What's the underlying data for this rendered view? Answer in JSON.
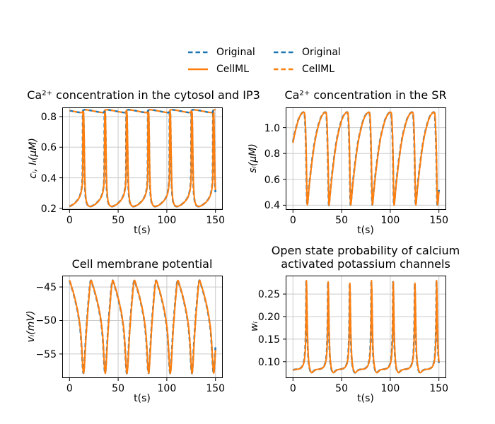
{
  "figure": {
    "background": "#ffffff"
  },
  "legends": [
    {
      "location": "top-center-left",
      "entries": [
        {
          "label": "Original",
          "color": "#1f77b4",
          "linestyle": "dashed"
        },
        {
          "label": "CellML",
          "color": "#ff7f0e",
          "linestyle": "solid"
        }
      ]
    },
    {
      "location": "top-center-right",
      "entries": [
        {
          "label": "Original",
          "color": "#1f77b4",
          "linestyle": "dashed"
        },
        {
          "label": "CellML",
          "color": "#ff7f0e",
          "linestyle": "dashed"
        }
      ]
    }
  ],
  "chart_data": [
    {
      "id": "cytosol",
      "type": "line",
      "title": "Ca²⁺ concentration in the cytosol and IP3",
      "xlabel": "t(s)",
      "ylabel": "cᵢ, Iᵢ(μM)",
      "xlim": [
        -7.5,
        157.5
      ],
      "ylim": [
        0.19,
        0.86
      ],
      "xticks": [
        0,
        50,
        100,
        150
      ],
      "xtick_labels": [
        "0",
        "50",
        "100",
        "150"
      ],
      "yticks": [
        0.2,
        0.4,
        0.6,
        0.8
      ],
      "ytick_labels": [
        "0.2",
        "0.4",
        "0.6",
        "0.8"
      ],
      "grid": true,
      "t_range": [
        0,
        150
      ],
      "period": 22.3,
      "first_spike": 13.8,
      "series": [
        {
          "name": "Original",
          "variable": "ci",
          "color": "#1f77b4",
          "dash": [
            6,
            4
          ],
          "width": 2.6,
          "t_offset": 0.15,
          "waveform": "ci"
        },
        {
          "name": "CellML",
          "variable": "ci",
          "color": "#ff7f0e",
          "dash": null,
          "width": 2.1,
          "t_offset": 0,
          "waveform": "ci"
        },
        {
          "name": "Original",
          "variable": "Ii",
          "color": "#1f77b4",
          "dash": [
            6,
            4
          ],
          "width": 2.4,
          "t_offset": 0,
          "waveform": "ip3"
        },
        {
          "name": "CellML",
          "variable": "Ii",
          "color": "#ff7f0e",
          "dash": [
            6,
            4
          ],
          "dash_offset": 5,
          "width": 2.2,
          "t_offset": 0,
          "waveform": "ip3"
        }
      ],
      "waveforms": {
        "ci": [
          [
            0,
            0.835
          ],
          [
            0.5,
            0.833
          ],
          [
            0.8,
            0.815
          ],
          [
            1.1,
            0.72
          ],
          [
            1.45,
            0.56
          ],
          [
            1.8,
            0.43
          ],
          [
            2.2,
            0.34
          ],
          [
            2.8,
            0.28
          ],
          [
            3.5,
            0.245
          ],
          [
            4.5,
            0.226
          ],
          [
            5.5,
            0.217
          ],
          [
            7.0,
            0.212
          ],
          [
            8.5,
            0.213
          ],
          [
            10.0,
            0.217
          ],
          [
            12.0,
            0.224
          ],
          [
            14.0,
            0.234
          ],
          [
            16.0,
            0.247
          ],
          [
            17.8,
            0.262
          ],
          [
            19.2,
            0.28
          ],
          [
            20.3,
            0.302
          ],
          [
            21.2,
            0.332
          ],
          [
            21.8,
            0.375
          ],
          [
            22.1,
            0.45
          ],
          [
            22.2,
            0.6
          ],
          [
            22.26,
            0.78
          ]
        ],
        "ip3": [
          [
            0,
            0.84
          ],
          [
            1.5,
            0.845
          ],
          [
            4.0,
            0.844
          ],
          [
            8.0,
            0.84
          ],
          [
            12.0,
            0.835
          ],
          [
            16.0,
            0.83
          ],
          [
            19.0,
            0.827
          ],
          [
            21.2,
            0.826
          ],
          [
            22.1,
            0.834
          ]
        ]
      }
    },
    {
      "id": "sr",
      "type": "line",
      "title": "Ca²⁺ concentration in the SR",
      "xlabel": "t(s)",
      "ylabel": "sᵢ(μM)",
      "xlim": [
        -7.5,
        157.5
      ],
      "ylim": [
        0.364,
        1.156
      ],
      "xticks": [
        0,
        50,
        100,
        150
      ],
      "xtick_labels": [
        "0",
        "50",
        "100",
        "150"
      ],
      "yticks": [
        0.4,
        0.6,
        0.8,
        1.0
      ],
      "ytick_labels": [
        "0.4",
        "0.6",
        "0.8",
        "1.0"
      ],
      "grid": true,
      "t_range": [
        0,
        150
      ],
      "period": 22.3,
      "first_spike": 13.8,
      "series": [
        {
          "name": "Original",
          "variable": "si",
          "color": "#1f77b4",
          "dash": [
            6,
            4
          ],
          "width": 2.6,
          "t_offset": 0.15,
          "waveform": "si"
        },
        {
          "name": "CellML",
          "variable": "si",
          "color": "#ff7f0e",
          "dash": null,
          "width": 2.1,
          "t_offset": 0,
          "waveform": "si"
        }
      ],
      "waveforms": {
        "si": [
          [
            0,
            0.72
          ],
          [
            0.25,
            0.6
          ],
          [
            0.5,
            0.49
          ],
          [
            0.75,
            0.42
          ],
          [
            0.95,
            0.4
          ],
          [
            1.2,
            0.41
          ],
          [
            1.7,
            0.445
          ],
          [
            2.5,
            0.515
          ],
          [
            3.5,
            0.59
          ],
          [
            5.0,
            0.69
          ],
          [
            6.5,
            0.78
          ],
          [
            8.0,
            0.86
          ],
          [
            9.5,
            0.925
          ],
          [
            11.0,
            0.975
          ],
          [
            12.5,
            1.02
          ],
          [
            14.0,
            1.058
          ],
          [
            15.5,
            1.086
          ],
          [
            17.0,
            1.104
          ],
          [
            18.3,
            1.115
          ],
          [
            19.5,
            1.12
          ],
          [
            20.3,
            1.116
          ],
          [
            20.8,
            1.088
          ],
          [
            21.2,
            1.03
          ],
          [
            21.6,
            0.945
          ],
          [
            21.9,
            0.858
          ],
          [
            22.15,
            0.775
          ]
        ]
      }
    },
    {
      "id": "membrane",
      "type": "line",
      "title": "Cell membrane potential",
      "xlabel": "t(s)",
      "ylabel": "vᵢ(mV)",
      "xlim": [
        -7.5,
        157.5
      ],
      "ylim": [
        -58.6,
        -43.3
      ],
      "xticks": [
        0,
        50,
        100,
        150
      ],
      "xtick_labels": [
        "0",
        "50",
        "100",
        "150"
      ],
      "yticks": [
        -55,
        -50,
        -45
      ],
      "ytick_labels": [
        "−55",
        "−50",
        "−45"
      ],
      "grid": true,
      "t_range": [
        0,
        150
      ],
      "period": 22.3,
      "first_spike": 13.8,
      "series": [
        {
          "name": "Original",
          "variable": "vi",
          "color": "#1f77b4",
          "dash": [
            6,
            4
          ],
          "width": 2.6,
          "t_offset": 0.15,
          "waveform": "vi"
        },
        {
          "name": "CellML",
          "variable": "vi",
          "color": "#ff7f0e",
          "dash": null,
          "width": 2.1,
          "t_offset": 0,
          "waveform": "vi"
        }
      ],
      "waveforms": {
        "vi": [
          [
            0,
            -57.2
          ],
          [
            0.35,
            -57.75
          ],
          [
            0.7,
            -57.9
          ],
          [
            1.1,
            -57.55
          ],
          [
            1.7,
            -56.3
          ],
          [
            2.4,
            -54.4
          ],
          [
            3.2,
            -52.3
          ],
          [
            4.0,
            -50.5
          ],
          [
            4.9,
            -48.8
          ],
          [
            5.8,
            -47.2
          ],
          [
            6.6,
            -45.8
          ],
          [
            7.3,
            -44.7
          ],
          [
            7.9,
            -44.15
          ],
          [
            8.5,
            -44.0
          ],
          [
            9.2,
            -44.25
          ],
          [
            10.5,
            -44.9
          ],
          [
            12.0,
            -45.6
          ],
          [
            13.5,
            -46.4
          ],
          [
            15.0,
            -47.3
          ],
          [
            16.5,
            -48.3
          ],
          [
            18.0,
            -49.5
          ],
          [
            19.2,
            -50.7
          ],
          [
            20.2,
            -52.1
          ],
          [
            21.0,
            -53.8
          ],
          [
            21.6,
            -55.5
          ],
          [
            22.0,
            -56.6
          ]
        ]
      }
    },
    {
      "id": "potassium",
      "type": "line",
      "title": "Open state probability of calcium activated potassium channels",
      "xlabel": "t(s)",
      "ylabel": "wᵢ",
      "xlim": [
        -7.5,
        157.5
      ],
      "ylim": [
        0.0636,
        0.291
      ],
      "xticks": [
        0,
        50,
        100,
        150
      ],
      "xtick_labels": [
        "0",
        "50",
        "100",
        "150"
      ],
      "yticks": [
        0.1,
        0.15,
        0.2,
        0.25
      ],
      "ytick_labels": [
        "0.10",
        "0.15",
        "0.20",
        "0.25"
      ],
      "grid": true,
      "t_range": [
        0,
        150
      ],
      "period": 22.3,
      "first_spike": 13.8,
      "series": [
        {
          "name": "Original",
          "variable": "wi",
          "color": "#1f77b4",
          "dash": [
            6,
            4
          ],
          "width": 2.6,
          "t_offset": 0.15,
          "waveform": "wi"
        },
        {
          "name": "CellML",
          "variable": "wi",
          "color": "#ff7f0e",
          "dash": null,
          "width": 2.1,
          "t_offset": 0,
          "waveform": "wi"
        }
      ],
      "waveforms": {
        "wi": [
          [
            0,
            0.28
          ],
          [
            0.3,
            0.262
          ],
          [
            0.6,
            0.222
          ],
          [
            0.95,
            0.178
          ],
          [
            1.35,
            0.142
          ],
          [
            1.8,
            0.117
          ],
          [
            2.4,
            0.099
          ],
          [
            3.1,
            0.088
          ],
          [
            3.9,
            0.0805
          ],
          [
            4.8,
            0.0765
          ],
          [
            5.6,
            0.0755
          ],
          [
            6.4,
            0.0765
          ],
          [
            7.4,
            0.079
          ],
          [
            8.6,
            0.081
          ],
          [
            10.0,
            0.0825
          ],
          [
            12.0,
            0.083
          ],
          [
            14.0,
            0.0835
          ],
          [
            16.0,
            0.085
          ],
          [
            17.5,
            0.0875
          ],
          [
            18.7,
            0.0915
          ],
          [
            19.7,
            0.098
          ],
          [
            20.5,
            0.108
          ],
          [
            21.1,
            0.124
          ],
          [
            21.6,
            0.152
          ],
          [
            21.95,
            0.195
          ],
          [
            22.18,
            0.245
          ]
        ]
      }
    }
  ]
}
